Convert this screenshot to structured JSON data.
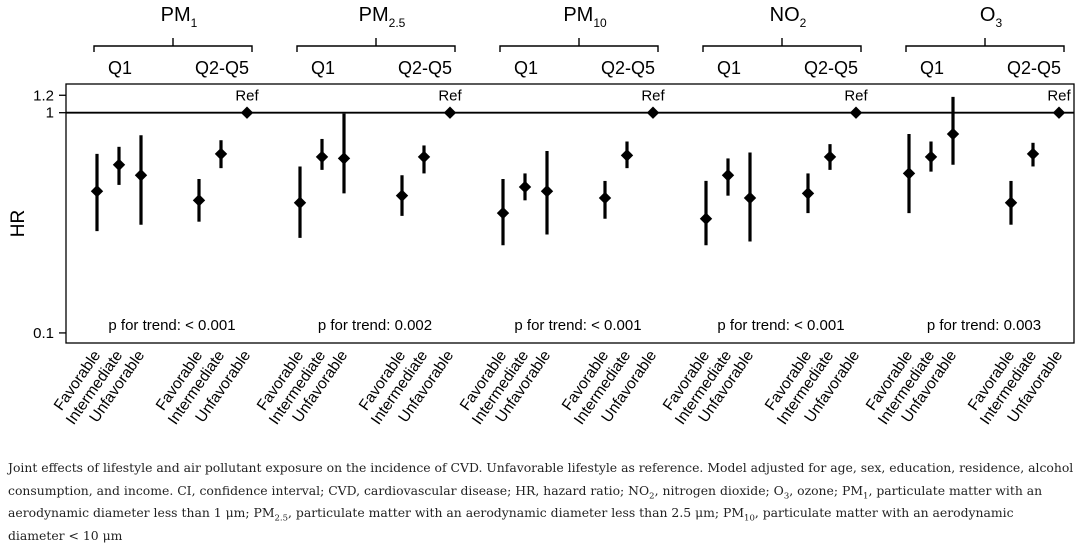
{
  "chart_data": {
    "type": "forest",
    "ylabel": "HR",
    "y_ticks": [
      0.1,
      1,
      1.2
    ],
    "y_tick_labels": [
      "0.1",
      "1",
      "1.2"
    ],
    "reference_line": 1,
    "reference_label": "Ref",
    "categories": [
      "Favorable",
      "Intermediate",
      "Unfavorable"
    ],
    "quantile_groups": [
      "Q1",
      "Q2-Q5"
    ],
    "panels": [
      {
        "pollutant_base": "PM",
        "pollutant_sub": "1",
        "trend": "p for trend: < 0.001",
        "Q1": {
          "hr": [
            0.44,
            0.58,
            0.52
          ],
          "lower": [
            0.29,
            0.47,
            0.31
          ],
          "upper": [
            0.65,
            0.7,
            0.79
          ]
        },
        "Q2-Q5": {
          "hr": [
            0.4,
            0.65,
            null
          ],
          "lower": [
            0.32,
            0.56,
            null
          ],
          "upper": [
            0.5,
            0.75,
            null
          ]
        }
      },
      {
        "pollutant_base": "PM",
        "pollutant_sub": "2.5",
        "trend": "p for trend: 0.002",
        "Q1": {
          "hr": [
            0.39,
            0.63,
            0.62
          ],
          "lower": [
            0.27,
            0.55,
            0.43
          ],
          "upper": [
            0.57,
            0.76,
            0.99
          ]
        },
        "Q2-Q5": {
          "hr": [
            0.42,
            0.63,
            null
          ],
          "lower": [
            0.34,
            0.53,
            null
          ],
          "upper": [
            0.52,
            0.71,
            null
          ]
        }
      },
      {
        "pollutant_base": "PM",
        "pollutant_sub": "10",
        "trend": "p for trend: < 0.001",
        "Q1": {
          "hr": [
            0.35,
            0.46,
            0.44
          ],
          "lower": [
            0.25,
            0.4,
            0.28
          ],
          "upper": [
            0.5,
            0.53,
            0.67
          ]
        },
        "Q2-Q5": {
          "hr": [
            0.41,
            0.64,
            null
          ],
          "lower": [
            0.33,
            0.56,
            null
          ],
          "upper": [
            0.49,
            0.74,
            null
          ]
        }
      },
      {
        "pollutant_base": "NO",
        "pollutant_sub": "2",
        "trend": "p for trend: < 0.001",
        "Q1": {
          "hr": [
            0.33,
            0.52,
            0.41
          ],
          "lower": [
            0.25,
            0.42,
            0.26
          ],
          "upper": [
            0.49,
            0.62,
            0.66
          ]
        },
        "Q2-Q5": {
          "hr": [
            0.43,
            0.63,
            null
          ],
          "lower": [
            0.35,
            0.55,
            null
          ],
          "upper": [
            0.53,
            0.72,
            null
          ]
        }
      },
      {
        "pollutant_base": "O",
        "pollutant_sub": "3",
        "trend": "p for trend: 0.003",
        "Q1": {
          "hr": [
            0.53,
            0.63,
            0.8
          ],
          "lower": [
            0.35,
            0.54,
            0.58
          ],
          "upper": [
            0.8,
            0.74,
            1.18
          ]
        },
        "Q2-Q5": {
          "hr": [
            0.39,
            0.65,
            null
          ],
          "lower": [
            0.31,
            0.57,
            null
          ],
          "upper": [
            0.49,
            0.73,
            null
          ]
        }
      }
    ]
  },
  "caption": {
    "t1": "Joint effects of lifestyle and air pollutant exposure on the incidence of CVD. Unfavorable lifestyle as reference. Model adjusted for age, sex, education, residence, alcohol consumption, and income. CI, confidence interval; CVD, cardiovascular disease; HR, hazard ratio; NO",
    "s1": "2",
    "t2": ", nitrogen dioxide; O",
    "s2": "3",
    "t3": ", ozone; PM",
    "s3": "1",
    "t4": ", particulate matter with an aerodynamic diameter less than 1 μm; PM",
    "s4": "2.5",
    "t5": ", particulate matter with an aerodynamic diameter less than 2.5 μm; PM",
    "s5": "10",
    "t6": ", particulate matter with an aerodynamic diameter < 10 μm"
  }
}
